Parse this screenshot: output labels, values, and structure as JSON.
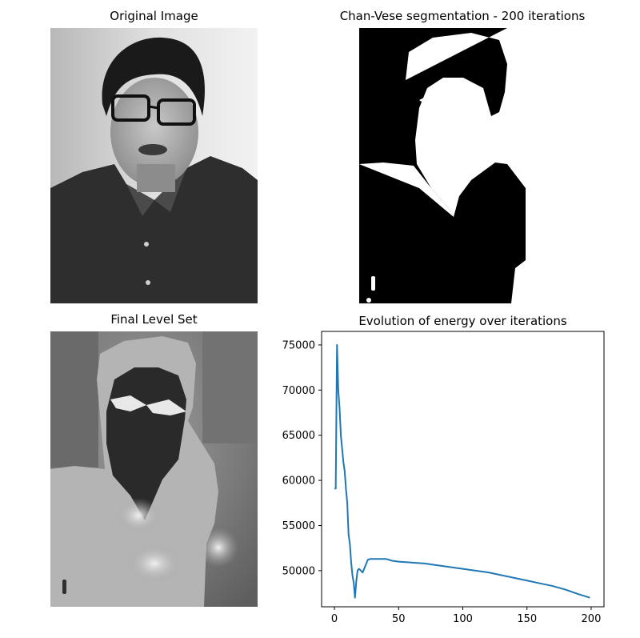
{
  "panels": {
    "original": {
      "title": "Original Image"
    },
    "segmentation": {
      "title": "Chan-Vese segmentation - 200 iterations"
    },
    "level_set": {
      "title": "Final Level Set"
    }
  },
  "chart_data": {
    "type": "line",
    "title": "Evolution of energy over iterations",
    "xlabel": "",
    "ylabel": "",
    "xlim": [
      -10,
      210
    ],
    "ylim": [
      46000,
      76500
    ],
    "x_ticks": [
      0,
      50,
      100,
      150,
      200
    ],
    "y_ticks": [
      50000,
      55000,
      60000,
      65000,
      70000,
      75000
    ],
    "grid": false,
    "series": [
      {
        "color": "#1f77b4",
        "x": [
          0,
          1,
          2,
          3,
          4,
          5,
          6,
          7,
          8,
          9,
          10,
          11,
          12,
          13,
          14,
          15,
          16,
          17,
          18,
          19,
          20,
          22,
          24,
          26,
          28,
          30,
          35,
          40,
          45,
          50,
          60,
          70,
          80,
          90,
          100,
          110,
          120,
          130,
          140,
          150,
          160,
          170,
          180,
          190,
          199
        ],
        "y": [
          59100,
          59100,
          75000,
          70000,
          68000,
          65000,
          63500,
          62000,
          61000,
          59000,
          57500,
          54000,
          53000,
          51000,
          49500,
          48700,
          47000,
          48800,
          50000,
          50200,
          50100,
          49800,
          50500,
          51200,
          51300,
          51300,
          51300,
          51300,
          51100,
          51000,
          50900,
          50800,
          50600,
          50400,
          50200,
          50000,
          49800,
          49500,
          49200,
          48900,
          48600,
          48300,
          47900,
          47400,
          47000
        ]
      }
    ]
  }
}
